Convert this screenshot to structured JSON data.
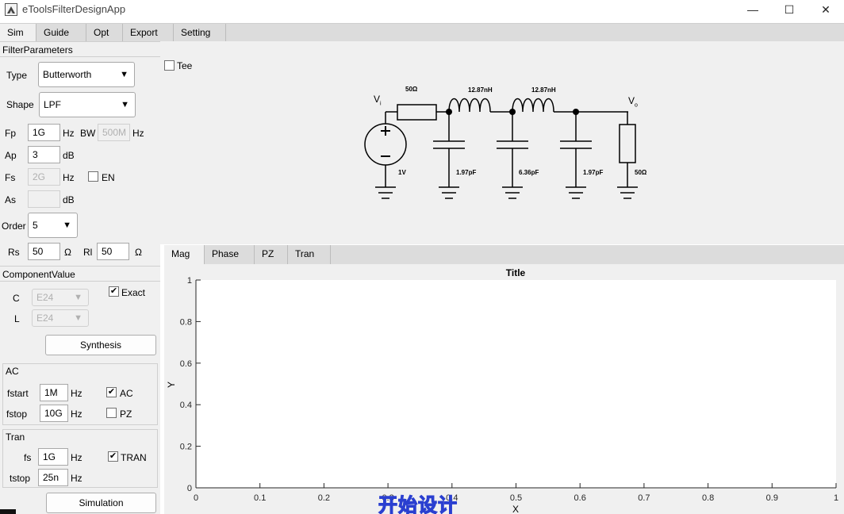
{
  "window": {
    "title": "eToolsFilterDesignApp",
    "minimize": "—",
    "maximize": "☐",
    "close": "✕"
  },
  "tabs": [
    {
      "label": "Sim",
      "active": true
    },
    {
      "label": "Guide",
      "active": false
    },
    {
      "label": "Opt",
      "active": false
    },
    {
      "label": "Export",
      "active": false
    },
    {
      "label": "Setting",
      "active": false
    }
  ],
  "filter_params": {
    "header": "FilterParameters",
    "type_label": "Type",
    "type_value": "Butterworth",
    "shape_label": "Shape",
    "shape_value": "LPF",
    "fp_label": "Fp",
    "fp_value": "1G",
    "fp_unit": "Hz",
    "bw_label": "BW",
    "bw_value": "500M",
    "bw_unit": "Hz",
    "ap_label": "Ap",
    "ap_value": "3",
    "ap_unit": "dB",
    "fs_label": "Fs",
    "fs_value": "2G",
    "fs_unit": "Hz",
    "en_label": "EN",
    "en_checked": false,
    "as_label": "As",
    "as_value": "",
    "as_unit": "dB",
    "order_label": "Order",
    "order_value": "5",
    "rs_label": "Rs",
    "rs_value": "50",
    "rs_unit": "Ω",
    "rl_label": "Rl",
    "rl_value": "50",
    "rl_unit": "Ω"
  },
  "component_value": {
    "header": "ComponentValue",
    "c_label": "C",
    "c_value": "E24",
    "l_label": "L",
    "l_value": "E24",
    "exact_label": "Exact",
    "exact_checked": true,
    "synthesis_button": "Synthesis"
  },
  "ac": {
    "header": "AC",
    "fstart_label": "fstart",
    "fstart_value": "1M",
    "fstart_unit": "Hz",
    "fstop_label": "fstop",
    "fstop_value": "10G",
    "fstop_unit": "Hz",
    "ac_label": "AC",
    "ac_checked": true,
    "pz_label": "PZ",
    "pz_checked": false
  },
  "tran": {
    "header": "Tran",
    "fs_label": "fs",
    "fs_value": "1G",
    "fs_unit": "Hz",
    "tstop_label": "tstop",
    "tstop_value": "25n",
    "tstop_unit": "Hz",
    "tran_label": "TRAN",
    "tran_checked": true,
    "simulation_button": "Simulation"
  },
  "schematic": {
    "tee_label": "Tee",
    "tee_checked": false,
    "vin_label": "V",
    "vin_sub": "i",
    "vout_label": "V",
    "vout_sub": "o",
    "source_value": "1V",
    "rs_value": "50Ω",
    "l1_value": "12.87nH",
    "l2_value": "12.87nH",
    "c1_value": "1.97pF",
    "c2_value": "6.36pF",
    "c3_value": "1.97pF",
    "rl_value": "50Ω"
  },
  "plot_tabs": [
    {
      "label": "Mag",
      "active": true
    },
    {
      "label": "Phase",
      "active": false
    },
    {
      "label": "PZ",
      "active": false
    },
    {
      "label": "Tran",
      "active": false
    }
  ],
  "chart_data": {
    "type": "line",
    "title": "Title",
    "xlabel": "X",
    "ylabel": "Y",
    "xlim": [
      0,
      1
    ],
    "ylim": [
      0,
      1
    ],
    "x_ticks": [
      "0",
      "0.1",
      "0.2",
      "0.3",
      "0.4",
      "0.5",
      "0.6",
      "0.7",
      "0.8",
      "0.9",
      "1"
    ],
    "y_ticks": [
      "0",
      "0.2",
      "0.4",
      "0.6",
      "0.8",
      "1"
    ],
    "series": []
  },
  "watermark": "开始设计",
  "colors": {
    "panel": "#f0f0f0",
    "tabbar": "#dcdcdc",
    "watermark_stroke": "#2a3fd0"
  }
}
